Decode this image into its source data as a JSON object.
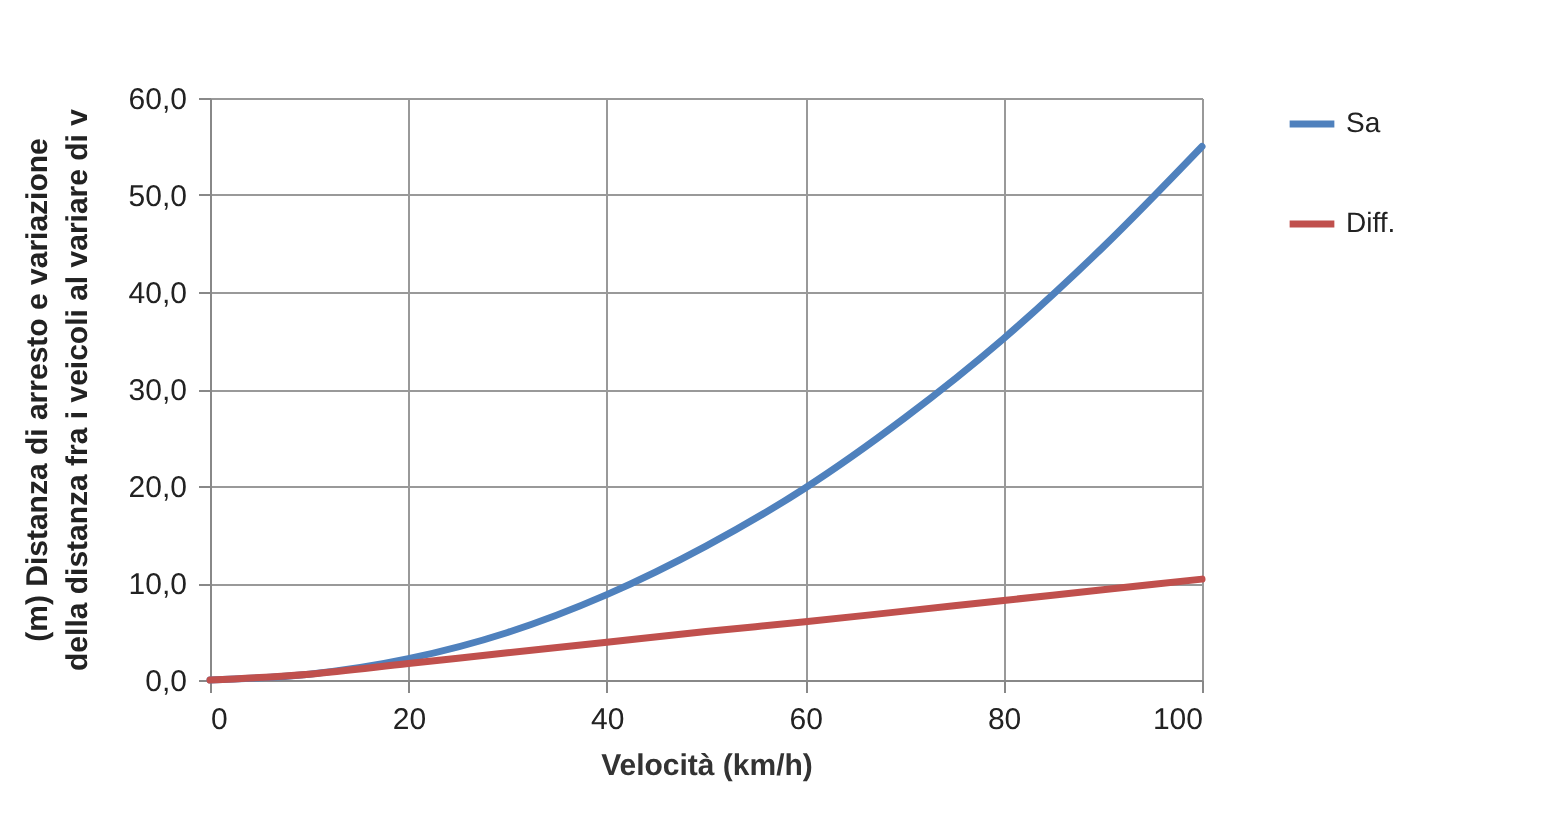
{
  "chart_data": {
    "type": "line",
    "xlabel": "Velocità (km/h)",
    "ylabel": "(m)  Distanza di arresto e variazione\ndella distanza fra i veicoli  al variare di v",
    "x": [
      0,
      10,
      20,
      30,
      40,
      50,
      60,
      70,
      80,
      90,
      100
    ],
    "series": [
      {
        "name": "Sa",
        "color": "#4f81bd",
        "values": [
          0,
          0.6,
          2.2,
          4.9,
          8.8,
          13.8,
          19.8,
          27,
          35.2,
          44.6,
          55
        ]
      },
      {
        "name": "Diff.",
        "color": "#c0504d",
        "values": [
          0,
          0.6,
          1.7,
          2.8,
          3.9,
          5.0,
          6.0,
          7.1,
          8.2,
          9.3,
          10.4
        ]
      }
    ],
    "xlim": [
      0,
      100
    ],
    "xticks": [
      0,
      20,
      40,
      60,
      80,
      100
    ],
    "ylim": [
      0,
      60
    ],
    "yticks": [
      {
        "value": 0,
        "label": "0,0"
      },
      {
        "value": 10,
        "label": "10,0"
      },
      {
        "value": 20,
        "label": "20,0"
      },
      {
        "value": 30,
        "label": "30,0"
      },
      {
        "value": 40,
        "label": "40,0"
      },
      {
        "value": 50,
        "label": "50,0"
      },
      {
        "value": 60,
        "label": "60,0"
      }
    ],
    "grid": true,
    "legend": "right",
    "marker": "none",
    "line_style": "solid"
  }
}
